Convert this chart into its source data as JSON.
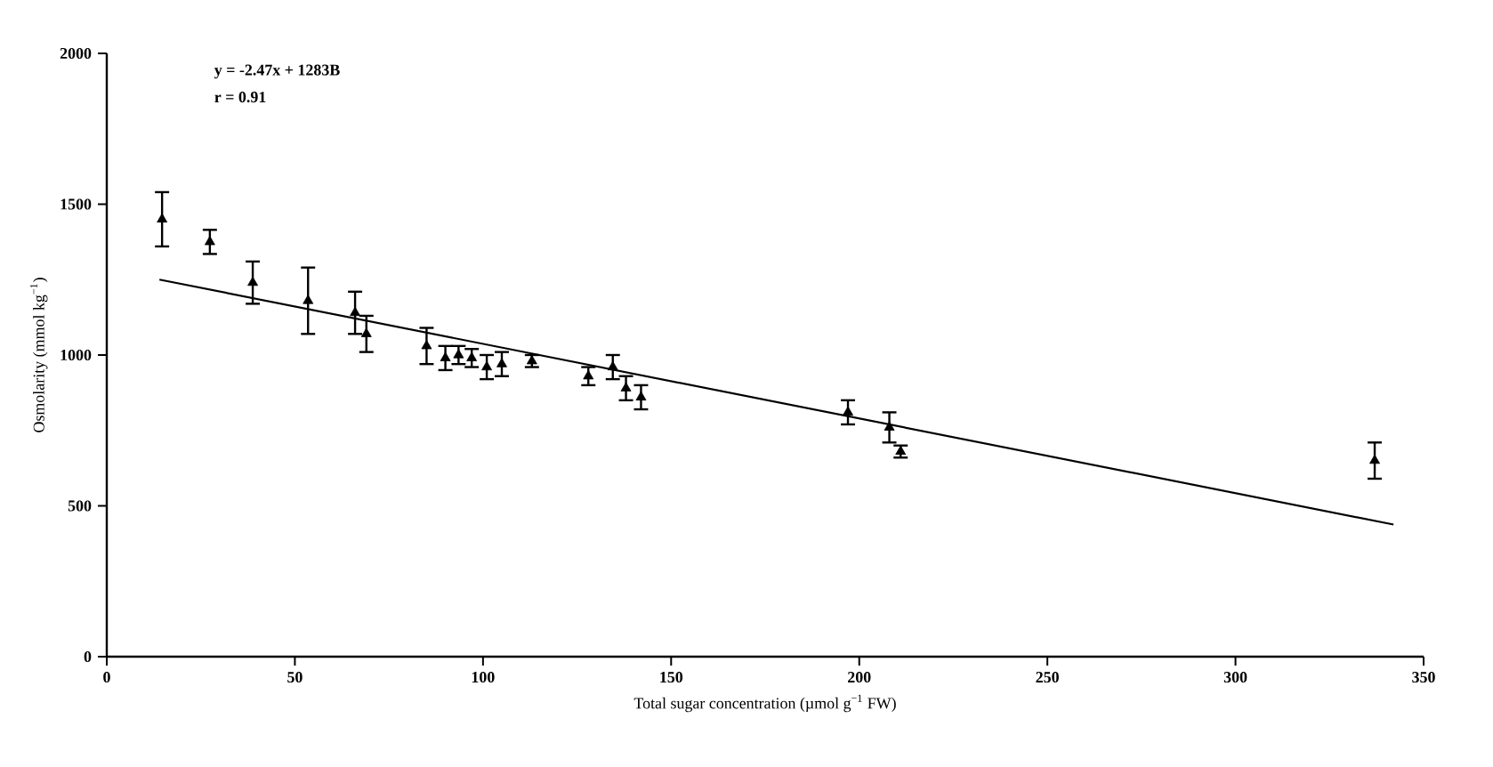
{
  "chart_data": {
    "type": "scatter",
    "xlabel": "Total sugar concentration (µmol g$^{−1}$ FW)",
    "ylabel": "Osmolarity (mmol kg$^{−1}$)",
    "annotations": [
      "y = -2.47x + 1283B",
      "r = 0.91"
    ],
    "xlim": [
      0,
      350
    ],
    "xticks": [
      0,
      50,
      100,
      150,
      200,
      250,
      300,
      350
    ],
    "ylim": [
      0,
      2000
    ],
    "yticks": [
      0,
      500,
      1000,
      1500,
      2000
    ],
    "grid": false,
    "series": [
      {
        "color": "#000000",
        "marker": "triangle",
        "x": [
          14.7,
          27.4,
          38.8,
          53.5,
          66,
          69,
          85,
          90,
          93.5,
          97,
          101,
          105,
          113,
          128,
          134.5,
          138,
          142,
          197,
          208,
          211,
          337
        ],
        "values": [
          1450,
          1375,
          1240,
          1180,
          1140,
          1070,
          1030,
          990,
          1000,
          990,
          960,
          970,
          980,
          930,
          960,
          890,
          860,
          810,
          760,
          680,
          650
        ],
        "errors": [
          90,
          40,
          70,
          110,
          70,
          60,
          60,
          40,
          30,
          30,
          40,
          40,
          20,
          30,
          40,
          40,
          40,
          40,
          50,
          20,
          60
        ]
      },
      {
        "type": "line",
        "color": "#000000",
        "marker": "none",
        "line_style": "solid",
        "x": [
          14,
          342
        ],
        "values": [
          1250,
          438
        ]
      }
    ]
  }
}
